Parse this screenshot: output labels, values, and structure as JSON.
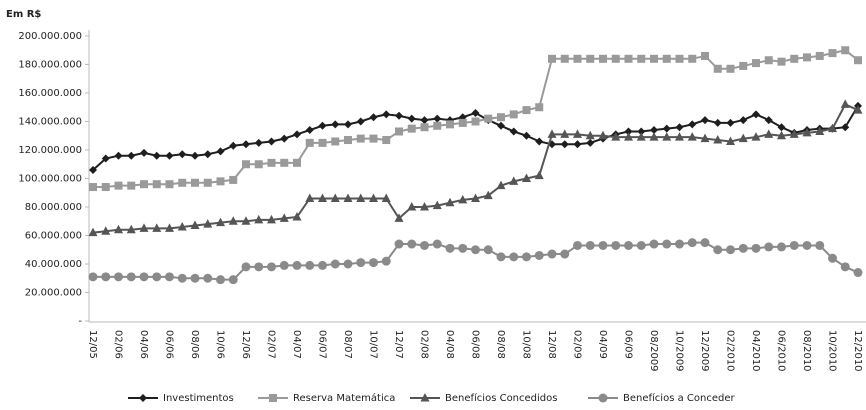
{
  "chart_data": {
    "type": "line",
    "y_axis_label": "Em R$",
    "categories": [
      "12/05",
      null,
      "02/06",
      null,
      "04/06",
      null,
      "06/06",
      null,
      "08/06",
      null,
      "10/06",
      null,
      "12/06",
      null,
      "02/07",
      null,
      "04/07",
      null,
      "06/07",
      null,
      "08/07",
      null,
      "10/07",
      null,
      "12/07",
      null,
      "02/08",
      null,
      "04/08",
      null,
      "06/08",
      null,
      "08/08",
      null,
      "10/08",
      null,
      "12/08",
      null,
      "02/09",
      null,
      "04/09",
      null,
      "06/09",
      null,
      "08/2009",
      null,
      "10/2009",
      null,
      "12/2009",
      null,
      "02/2010",
      null,
      "04/2010",
      null,
      "06/2010",
      null,
      "08/2010",
      null,
      "10/2010",
      null,
      "12/2010"
    ],
    "series": [
      {
        "name": "Investimentos",
        "color": "#1e1e1e",
        "marker": "diamond",
        "values": [
          106000000,
          114000000,
          116000000,
          116000000,
          118000000,
          116000000,
          116000000,
          117000000,
          116000000,
          117000000,
          119000000,
          123000000,
          124000000,
          125000000,
          126000000,
          128000000,
          131000000,
          134000000,
          137000000,
          138000000,
          138000000,
          140000000,
          143000000,
          145000000,
          144000000,
          142000000,
          141000000,
          142000000,
          141000000,
          143000000,
          146000000,
          141000000,
          137000000,
          133000000,
          130000000,
          126000000,
          124000000,
          124000000,
          124000000,
          125000000,
          128000000,
          131000000,
          133000000,
          133000000,
          134000000,
          135000000,
          136000000,
          138000000,
          141000000,
          139000000,
          139000000,
          141000000,
          145000000,
          141000000,
          136000000,
          132000000,
          134000000,
          135000000,
          135000000,
          136000000,
          151000000
        ]
      },
      {
        "name": "Reserva Matemática",
        "color": "#9a9a9a",
        "marker": "square",
        "values": [
          94000000,
          94000000,
          95000000,
          95000000,
          96000000,
          96000000,
          96000000,
          97000000,
          97000000,
          97000000,
          98000000,
          99000000,
          110000000,
          110000000,
          111000000,
          111000000,
          111000000,
          125000000,
          125000000,
          126000000,
          127000000,
          128000000,
          128000000,
          127000000,
          133000000,
          135000000,
          136000000,
          137000000,
          138000000,
          139000000,
          140000000,
          142000000,
          143000000,
          145000000,
          148000000,
          150000000,
          184000000,
          184000000,
          184000000,
          184000000,
          184000000,
          184000000,
          184000000,
          184000000,
          184000000,
          184000000,
          184000000,
          184000000,
          186000000,
          177000000,
          177000000,
          179000000,
          181000000,
          183000000,
          182000000,
          184000000,
          185000000,
          186000000,
          188000000,
          190000000,
          183000000
        ]
      },
      {
        "name": "Benefícios Concedidos",
        "color": "#555555",
        "marker": "triangle",
        "values": [
          62000000,
          63000000,
          64000000,
          64000000,
          65000000,
          65000000,
          65000000,
          66000000,
          67000000,
          68000000,
          69000000,
          70000000,
          70000000,
          71000000,
          71000000,
          72000000,
          73000000,
          86000000,
          86000000,
          86000000,
          86000000,
          86000000,
          86000000,
          86000000,
          72000000,
          80000000,
          80000000,
          81000000,
          83000000,
          85000000,
          86000000,
          88000000,
          95000000,
          98000000,
          100000000,
          102000000,
          131000000,
          131000000,
          131000000,
          130000000,
          130000000,
          129000000,
          129000000,
          129000000,
          129000000,
          129000000,
          129000000,
          129000000,
          128000000,
          127000000,
          126000000,
          128000000,
          129000000,
          131000000,
          130000000,
          131000000,
          132000000,
          133000000,
          135000000,
          152000000,
          148000000
        ]
      },
      {
        "name": "Benefícios a Conceder",
        "color": "#8a8a8a",
        "marker": "circle",
        "values": [
          31000000,
          31000000,
          31000000,
          31000000,
          31000000,
          31000000,
          31000000,
          30000000,
          30000000,
          30000000,
          29000000,
          29000000,
          38000000,
          38000000,
          38000000,
          39000000,
          39000000,
          39000000,
          39000000,
          40000000,
          40000000,
          41000000,
          41000000,
          42000000,
          54000000,
          54000000,
          53000000,
          54000000,
          51000000,
          51000000,
          50000000,
          50000000,
          45000000,
          45000000,
          45000000,
          46000000,
          47000000,
          47000000,
          53000000,
          53000000,
          53000000,
          53000000,
          53000000,
          53000000,
          54000000,
          54000000,
          54000000,
          55000000,
          55000000,
          50000000,
          50000000,
          51000000,
          51000000,
          52000000,
          52000000,
          53000000,
          53000000,
          53000000,
          44000000,
          38000000,
          34000000
        ]
      }
    ],
    "ylim": [
      0,
      200000000
    ],
    "yticks": [
      {
        "value": 0,
        "label": "-"
      },
      {
        "value": 20000000,
        "label": "20.000.000"
      },
      {
        "value": 40000000,
        "label": "40.000.000"
      },
      {
        "value": 60000000,
        "label": "60.000.000"
      },
      {
        "value": 80000000,
        "label": "80.000.000"
      },
      {
        "value": 100000000,
        "label": "100.000.000"
      },
      {
        "value": 120000000,
        "label": "120.000.000"
      },
      {
        "value": 140000000,
        "label": "140.000.000"
      },
      {
        "value": 160000000,
        "label": "160.000.000"
      },
      {
        "value": 180000000,
        "label": "180.000.000"
      },
      {
        "value": 200000000,
        "label": "200.000.000"
      }
    ],
    "legend": "bottom"
  }
}
